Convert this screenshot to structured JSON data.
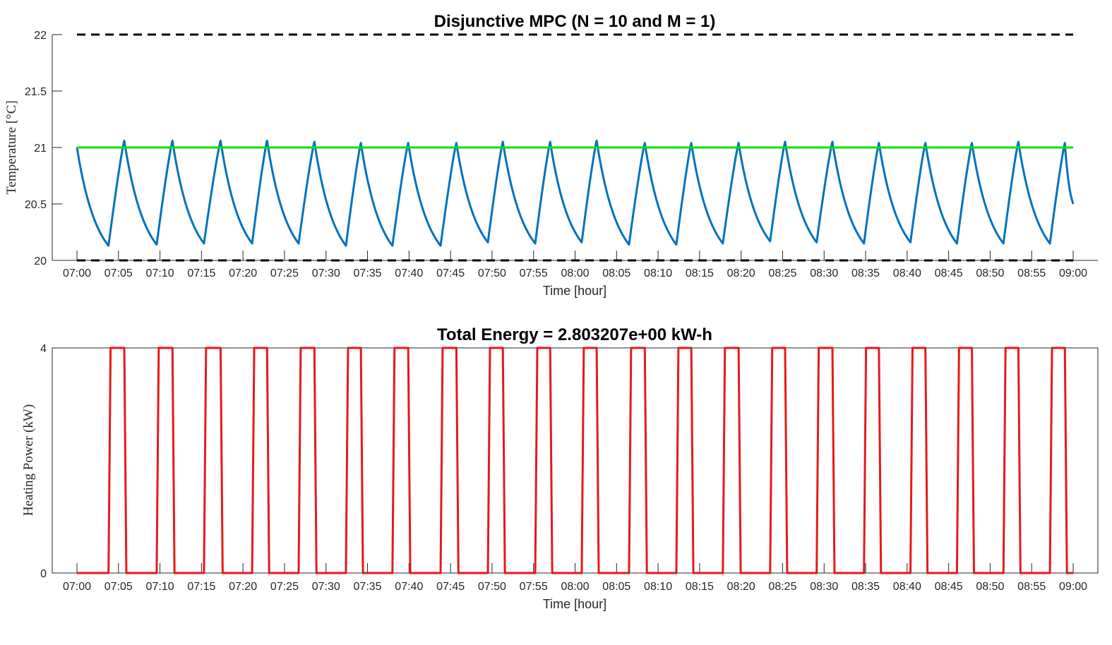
{
  "chart_data": [
    {
      "type": "line",
      "title": "Disjunctive MPC (N = 10 and M = 1)",
      "xlabel": "Time [hour]",
      "ylabel": "Temperature [°C]",
      "ylim": [
        20,
        22
      ],
      "yticks": [
        "20",
        "20.5",
        "21",
        "21.5",
        "22"
      ],
      "xlim": [
        "07:00",
        "09:00"
      ],
      "xticks": [
        "07:00",
        "07:05",
        "07:10",
        "07:15",
        "07:20",
        "07:25",
        "07:30",
        "07:35",
        "07:40",
        "07:45",
        "07:50",
        "07:55",
        "08:00",
        "08:05",
        "08:10",
        "08:15",
        "08:20",
        "08:25",
        "08:30",
        "08:35",
        "08:40",
        "08:45",
        "08:50",
        "08:55",
        "09:00"
      ],
      "grid": false,
      "series": [
        {
          "color": "#0072bd",
          "style": "solid",
          "x": [
            "07:00",
            "07:03.8",
            "07:05.7",
            "07:09.6",
            "07:11.5",
            "07:15.3",
            "07:17.3",
            "07:21.1",
            "07:22.9",
            "07:26.7",
            "07:28.6",
            "07:32.4",
            "07:34.2",
            "07:38.0",
            "07:39.9",
            "07:43.8",
            "07:45.7",
            "07:49.5",
            "07:51.3",
            "07:55.2",
            "07:57.0",
            "08:00.8",
            "08:02.6",
            "08:06.5",
            "08:08.4",
            "08:12.2",
            "08:14.0",
            "08:17.8",
            "08:19.7",
            "08:23.5",
            "08:25.3",
            "08:29.1",
            "08:31.0",
            "08:34.8",
            "08:36.6",
            "08:40.4",
            "08:42.2",
            "08:46.0",
            "08:47.8",
            "08:51.6",
            "08:53.4",
            "08:57.2",
            "08:59.0",
            "09:00"
          ],
          "y": [
            21.0,
            20.13,
            21.06,
            20.14,
            21.06,
            20.15,
            21.06,
            20.15,
            21.06,
            20.15,
            21.05,
            20.13,
            21.04,
            20.13,
            21.04,
            20.13,
            21.04,
            20.16,
            21.05,
            20.15,
            21.05,
            20.16,
            21.06,
            20.14,
            21.04,
            20.14,
            21.04,
            20.15,
            21.04,
            20.17,
            21.05,
            20.16,
            21.05,
            20.15,
            21.04,
            20.16,
            21.04,
            20.15,
            21.04,
            20.15,
            21.05,
            20.15,
            21.04,
            20.5
          ]
        },
        {
          "color": "#00e400",
          "style": "solid",
          "x": [
            "07:00",
            "09:00"
          ],
          "y": [
            21,
            21
          ]
        },
        {
          "color": "#000000",
          "style": "dashed",
          "x": [
            "07:00",
            "09:00"
          ],
          "y": [
            22,
            22
          ]
        },
        {
          "color": "#000000",
          "style": "dashed",
          "x": [
            "07:00",
            "09:00"
          ],
          "y": [
            20,
            20
          ]
        }
      ]
    },
    {
      "type": "line",
      "title": "Total Energy = 2.803207e+00 kW-h",
      "xlabel": "Time [hour]",
      "ylabel": "Heating Power (kW)",
      "ylim": [
        0,
        4
      ],
      "yticks": [
        "0",
        "4"
      ],
      "xlim": [
        "07:00",
        "09:00"
      ],
      "xticks": [
        "07:00",
        "07:05",
        "07:10",
        "07:15",
        "07:20",
        "07:25",
        "07:30",
        "07:35",
        "07:40",
        "07:45",
        "07:50",
        "07:55",
        "08:00",
        "08:05",
        "08:10",
        "08:15",
        "08:20",
        "08:25",
        "08:30",
        "08:35",
        "08:40",
        "08:45",
        "08:50",
        "08:55",
        "09:00"
      ],
      "grid": false,
      "series": [
        {
          "color": "#e41a1c",
          "style": "solid",
          "on_intervals": [
            [
              "07:03.8",
              "07:05.7"
            ],
            [
              "07:09.6",
              "07:11.5"
            ],
            [
              "07:15.3",
              "07:17.3"
            ],
            [
              "07:21.1",
              "07:22.9"
            ],
            [
              "07:26.7",
              "07:28.6"
            ],
            [
              "07:32.4",
              "07:34.2"
            ],
            [
              "07:38.0",
              "07:39.9"
            ],
            [
              "07:43.8",
              "07:45.7"
            ],
            [
              "07:49.5",
              "07:51.3"
            ],
            [
              "07:55.2",
              "07:57.0"
            ],
            [
              "08:00.8",
              "08:02.6"
            ],
            [
              "08:06.5",
              "08:08.4"
            ],
            [
              "08:12.2",
              "08:14.0"
            ],
            [
              "08:17.8",
              "08:19.7"
            ],
            [
              "08:23.5",
              "08:25.3"
            ],
            [
              "08:29.1",
              "08:31.0"
            ],
            [
              "08:34.8",
              "08:36.6"
            ],
            [
              "08:40.4",
              "08:42.2"
            ],
            [
              "08:46.0",
              "08:47.8"
            ],
            [
              "08:51.6",
              "08:53.4"
            ],
            [
              "08:57.2",
              "08:59.0"
            ]
          ],
          "on_value": 4,
          "off_value": 0
        }
      ]
    }
  ]
}
